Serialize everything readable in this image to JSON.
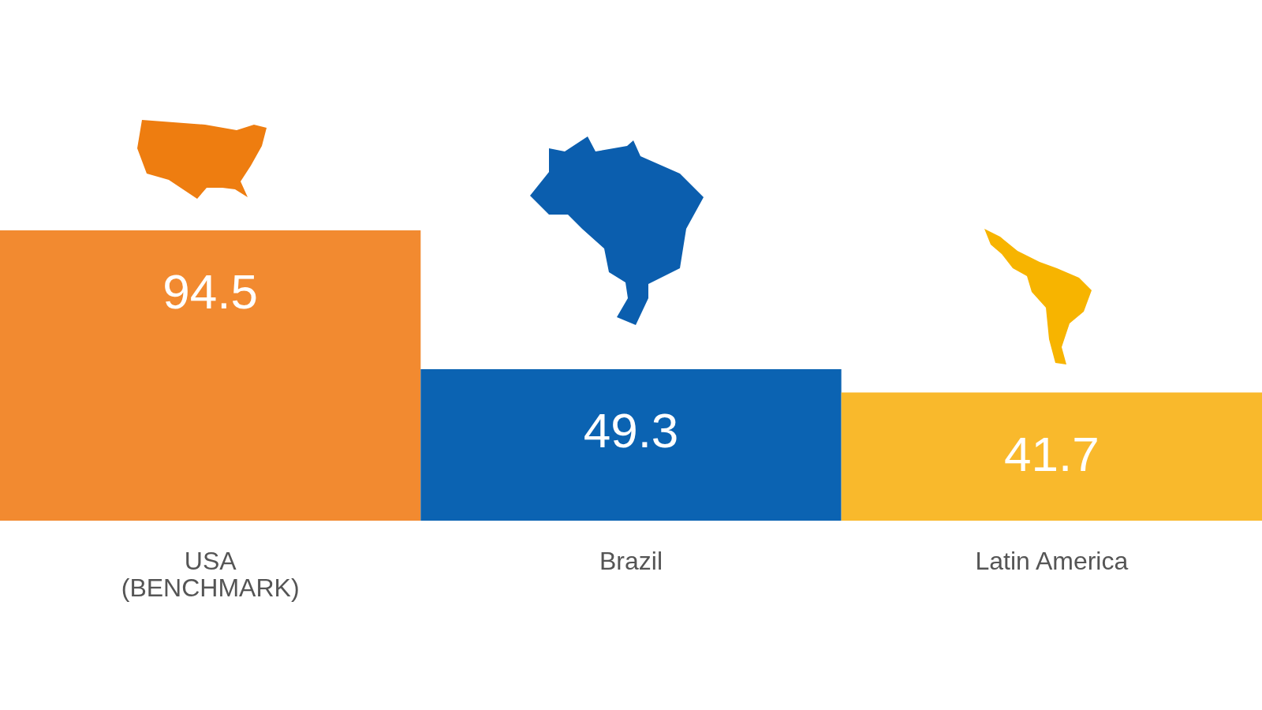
{
  "chart_data": {
    "type": "bar",
    "categories": [
      "USA\n(BENCHMARK)",
      "Brazil",
      "Latin America"
    ],
    "values": [
      94.5,
      49.3,
      41.7
    ],
    "colors": [
      "#f28a30",
      "#0b63b2",
      "#f9b92c"
    ],
    "data_labels": true
  }
}
